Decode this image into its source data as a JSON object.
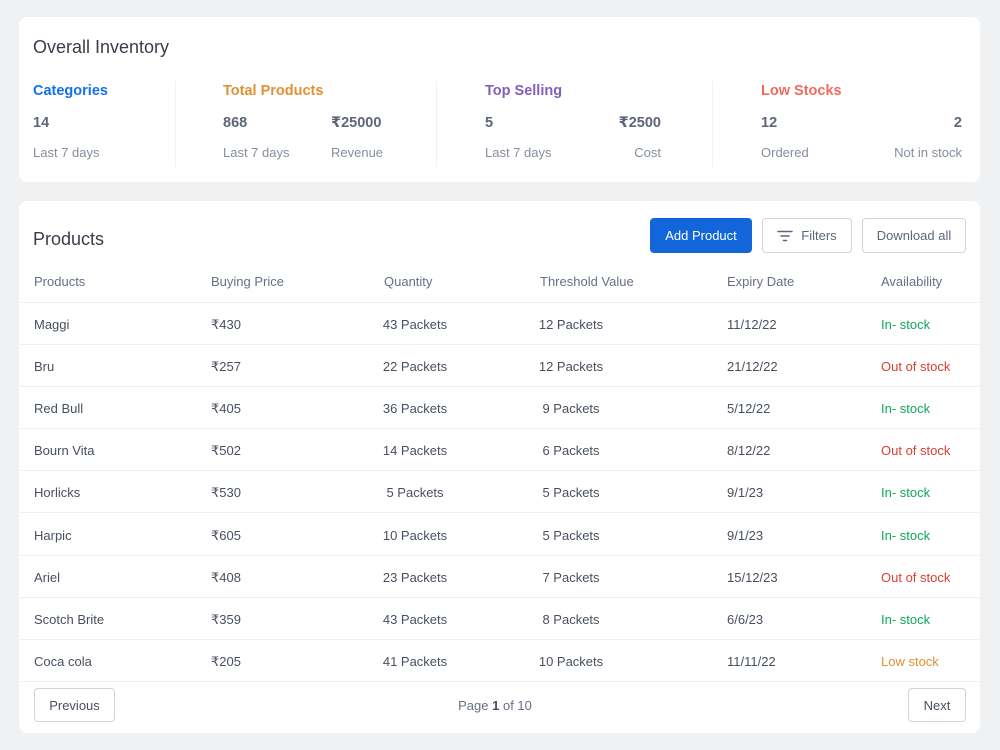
{
  "inventory": {
    "title": "Overall Inventory",
    "categories": {
      "label": "Categories",
      "color": "#1570ef",
      "value": "14",
      "sub": "Last 7 days"
    },
    "total_products": {
      "label": "Total Products",
      "color": "#e19133",
      "value": "868",
      "sub": "Last 7 days",
      "value2": "₹25000",
      "sub2": "Revenue"
    },
    "top_selling": {
      "label": "Top Selling",
      "color": "#845ebc",
      "value": "5",
      "sub": "Last 7 days",
      "value2": "₹2500",
      "sub2": "Cost"
    },
    "low_stocks": {
      "label": "Low Stocks",
      "color": "#f36960",
      "value": "12",
      "sub": "Ordered",
      "value2": "2",
      "sub2": "Not in stock"
    }
  },
  "products": {
    "title": "Products",
    "add_label": "Add Product",
    "filters_label": "Filters",
    "download_label": "Download all",
    "columns": [
      "Products",
      "Buying Price",
      "Quantity",
      "Threshold Value",
      "Expiry Date",
      "Availability"
    ],
    "rows": [
      {
        "name": "Maggi",
        "price": "₹430",
        "qty": "43 Packets",
        "threshold": "12 Packets",
        "expiry": "11/12/22",
        "status": "In- stock",
        "status_kind": "in"
      },
      {
        "name": "Bru",
        "price": "₹257",
        "qty": "22 Packets",
        "threshold": "12 Packets",
        "expiry": "21/12/22",
        "status": "Out of stock",
        "status_kind": "out"
      },
      {
        "name": "Red Bull",
        "price": "₹405",
        "qty": "36 Packets",
        "threshold": "9 Packets",
        "expiry": "5/12/22",
        "status": "In- stock",
        "status_kind": "in"
      },
      {
        "name": "Bourn Vita",
        "price": "₹502",
        "qty": "14 Packets",
        "threshold": "6 Packets",
        "expiry": "8/12/22",
        "status": "Out of stock",
        "status_kind": "out"
      },
      {
        "name": "Horlicks",
        "price": "₹530",
        "qty": "5 Packets",
        "threshold": "5 Packets",
        "expiry": "9/1/23",
        "status": "In- stock",
        "status_kind": "in"
      },
      {
        "name": "Harpic",
        "price": "₹605",
        "qty": "10 Packets",
        "threshold": "5 Packets",
        "expiry": "9/1/23",
        "status": "In- stock",
        "status_kind": "in"
      },
      {
        "name": "Ariel",
        "price": "₹408",
        "qty": "23 Packets",
        "threshold": "7 Packets",
        "expiry": "15/12/23",
        "status": "Out of stock",
        "status_kind": "out"
      },
      {
        "name": "Scotch Brite",
        "price": "₹359",
        "qty": "43 Packets",
        "threshold": "8 Packets",
        "expiry": "6/6/23",
        "status": "In- stock",
        "status_kind": "in"
      },
      {
        "name": "Coca cola",
        "price": "₹205",
        "qty": "41 Packets",
        "threshold": "10 Packets",
        "expiry": "11/11/22",
        "status": "Low  stock",
        "status_kind": "low"
      }
    ]
  },
  "pagination": {
    "previous_label": "Previous",
    "next_label": "Next",
    "page_word": "Page",
    "current": "1",
    "of_word": "of",
    "total": "10"
  },
  "icons": {
    "filters": "filter-lines-icon"
  }
}
